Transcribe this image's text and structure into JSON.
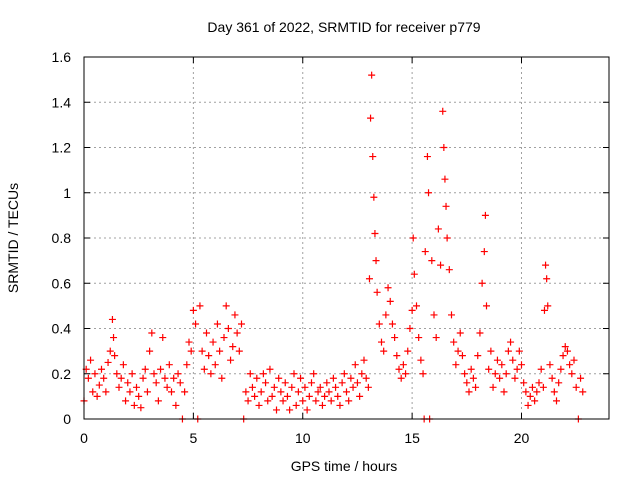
{
  "chart_data": {
    "type": "scatter",
    "title": "Day 361 of 2022, SRMTID for receiver p779",
    "xlabel": "GPS time / hours",
    "ylabel": "SRMTID / TECUs",
    "xlim": [
      0,
      24
    ],
    "ylim": [
      0,
      1.6
    ],
    "grid": true,
    "marker": "+",
    "series_color": "#ff0000",
    "x_ticks": [
      {
        "value": 0,
        "label": "0"
      },
      {
        "value": 5,
        "label": "5"
      },
      {
        "value": 10,
        "label": "10"
      },
      {
        "value": 15,
        "label": "15"
      },
      {
        "value": 20,
        "label": "20"
      }
    ],
    "y_ticks": [
      {
        "value": 0,
        "label": "0"
      },
      {
        "value": 0.2,
        "label": "0.2"
      },
      {
        "value": 0.4,
        "label": "0.4"
      },
      {
        "value": 0.6,
        "label": "0.6"
      },
      {
        "value": 0.8,
        "label": "0.8"
      },
      {
        "value": 1.0,
        "label": "1"
      },
      {
        "value": 1.2,
        "label": "1.2"
      },
      {
        "value": 1.4,
        "label": "1.4"
      },
      {
        "value": 1.6,
        "label": "1.6"
      }
    ],
    "series": [
      {
        "name": "SRMTID",
        "points": [
          [
            0.0,
            0.08
          ],
          [
            0.1,
            0.22
          ],
          [
            0.2,
            0.18
          ],
          [
            0.3,
            0.26
          ],
          [
            0.4,
            0.12
          ],
          [
            0.5,
            0.2
          ],
          [
            0.6,
            0.1
          ],
          [
            0.7,
            0.15
          ],
          [
            0.8,
            0.22
          ],
          [
            0.9,
            0.18
          ],
          [
            1.0,
            0.12
          ],
          [
            1.1,
            0.25
          ],
          [
            1.2,
            0.3
          ],
          [
            1.3,
            0.44
          ],
          [
            1.35,
            0.36
          ],
          [
            1.4,
            0.28
          ],
          [
            1.5,
            0.2
          ],
          [
            1.6,
            0.14
          ],
          [
            1.7,
            0.18
          ],
          [
            1.8,
            0.24
          ],
          [
            1.9,
            0.08
          ],
          [
            2.0,
            0.16
          ],
          [
            2.1,
            0.12
          ],
          [
            2.2,
            0.2
          ],
          [
            2.3,
            0.06
          ],
          [
            2.4,
            0.14
          ],
          [
            2.5,
            0.1
          ],
          [
            2.6,
            0.05
          ],
          [
            2.7,
            0.18
          ],
          [
            2.8,
            0.22
          ],
          [
            2.9,
            0.12
          ],
          [
            3.0,
            0.3
          ],
          [
            3.1,
            0.38
          ],
          [
            3.2,
            0.2
          ],
          [
            3.3,
            0.16
          ],
          [
            3.4,
            0.08
          ],
          [
            3.5,
            0.22
          ],
          [
            3.6,
            0.36
          ],
          [
            3.7,
            0.18
          ],
          [
            3.8,
            0.14
          ],
          [
            3.9,
            0.24
          ],
          [
            4.0,
            0.12
          ],
          [
            4.1,
            0.18
          ],
          [
            4.2,
            0.06
          ],
          [
            4.3,
            0.2
          ],
          [
            4.4,
            0.16
          ],
          [
            4.5,
            0.0
          ],
          [
            4.6,
            0.12
          ],
          [
            4.7,
            0.24
          ],
          [
            4.8,
            0.34
          ],
          [
            4.9,
            0.3
          ],
          [
            5.0,
            0.48
          ],
          [
            5.1,
            0.42
          ],
          [
            5.2,
            0.0
          ],
          [
            5.3,
            0.5
          ],
          [
            5.4,
            0.3
          ],
          [
            5.5,
            0.22
          ],
          [
            5.6,
            0.38
          ],
          [
            5.7,
            0.28
          ],
          [
            5.8,
            0.2
          ],
          [
            5.9,
            0.34
          ],
          [
            6.0,
            0.24
          ],
          [
            6.1,
            0.42
          ],
          [
            6.2,
            0.3
          ],
          [
            6.3,
            0.18
          ],
          [
            6.4,
            0.36
          ],
          [
            6.5,
            0.5
          ],
          [
            6.6,
            0.4
          ],
          [
            6.7,
            0.26
          ],
          [
            6.8,
            0.32
          ],
          [
            6.9,
            0.46
          ],
          [
            7.0,
            0.38
          ],
          [
            7.1,
            0.3
          ],
          [
            7.2,
            0.42
          ],
          [
            7.3,
            0.0
          ],
          [
            7.4,
            0.12
          ],
          [
            7.5,
            0.08
          ],
          [
            7.6,
            0.2
          ],
          [
            7.7,
            0.14
          ],
          [
            7.8,
            0.1
          ],
          [
            7.9,
            0.18
          ],
          [
            8.0,
            0.06
          ],
          [
            8.1,
            0.12
          ],
          [
            8.2,
            0.2
          ],
          [
            8.3,
            0.16
          ],
          [
            8.4,
            0.08
          ],
          [
            8.5,
            0.22
          ],
          [
            8.6,
            0.1
          ],
          [
            8.7,
            0.14
          ],
          [
            8.8,
            0.04
          ],
          [
            8.9,
            0.18
          ],
          [
            9.0,
            0.12
          ],
          [
            9.1,
            0.08
          ],
          [
            9.2,
            0.16
          ],
          [
            9.3,
            0.1
          ],
          [
            9.4,
            0.04
          ],
          [
            9.5,
            0.14
          ],
          [
            9.6,
            0.2
          ],
          [
            9.7,
            0.06
          ],
          [
            9.8,
            0.12
          ],
          [
            9.9,
            0.18
          ],
          [
            10.0,
            0.08
          ],
          [
            10.1,
            0.14
          ],
          [
            10.2,
            0.04
          ],
          [
            10.3,
            0.1
          ],
          [
            10.4,
            0.16
          ],
          [
            10.5,
            0.2
          ],
          [
            10.6,
            0.08
          ],
          [
            10.7,
            0.12
          ],
          [
            10.8,
            0.14
          ],
          [
            10.9,
            0.06
          ],
          [
            11.0,
            0.1
          ],
          [
            11.1,
            0.16
          ],
          [
            11.2,
            0.12
          ],
          [
            11.3,
            0.08
          ],
          [
            11.4,
            0.18
          ],
          [
            11.5,
            0.14
          ],
          [
            11.6,
            0.1
          ],
          [
            11.7,
            0.06
          ],
          [
            11.8,
            0.16
          ],
          [
            11.9,
            0.2
          ],
          [
            12.0,
            0.12
          ],
          [
            12.1,
            0.08
          ],
          [
            12.2,
            0.18
          ],
          [
            12.3,
            0.14
          ],
          [
            12.4,
            0.24
          ],
          [
            12.5,
            0.16
          ],
          [
            12.6,
            0.1
          ],
          [
            12.7,
            0.2
          ],
          [
            12.8,
            0.26
          ],
          [
            12.9,
            0.18
          ],
          [
            13.0,
            0.14
          ],
          [
            13.05,
            0.62
          ],
          [
            13.1,
            1.33
          ],
          [
            13.15,
            1.52
          ],
          [
            13.2,
            1.16
          ],
          [
            13.25,
            0.98
          ],
          [
            13.3,
            0.82
          ],
          [
            13.35,
            0.7
          ],
          [
            13.4,
            0.56
          ],
          [
            13.5,
            0.42
          ],
          [
            13.6,
            0.34
          ],
          [
            13.7,
            0.3
          ],
          [
            13.8,
            0.46
          ],
          [
            13.9,
            0.58
          ],
          [
            14.0,
            0.52
          ],
          [
            14.1,
            0.42
          ],
          [
            14.2,
            0.36
          ],
          [
            14.3,
            0.28
          ],
          [
            14.4,
            0.22
          ],
          [
            14.5,
            0.18
          ],
          [
            14.6,
            0.24
          ],
          [
            14.7,
            0.2
          ],
          [
            14.8,
            0.3
          ],
          [
            14.9,
            0.4
          ],
          [
            15.0,
            0.48
          ],
          [
            15.05,
            0.8
          ],
          [
            15.1,
            0.64
          ],
          [
            15.2,
            0.5
          ],
          [
            15.3,
            0.36
          ],
          [
            15.4,
            0.26
          ],
          [
            15.5,
            0.2
          ],
          [
            15.55,
            0.0
          ],
          [
            15.6,
            0.74
          ],
          [
            15.7,
            1.16
          ],
          [
            15.75,
            1.0
          ],
          [
            15.8,
            0.0
          ],
          [
            15.9,
            0.7
          ],
          [
            16.0,
            0.46
          ],
          [
            16.1,
            0.36
          ],
          [
            16.2,
            0.84
          ],
          [
            16.3,
            0.68
          ],
          [
            16.4,
            1.36
          ],
          [
            16.45,
            1.2
          ],
          [
            16.5,
            1.06
          ],
          [
            16.55,
            0.94
          ],
          [
            16.6,
            0.8
          ],
          [
            16.7,
            0.66
          ],
          [
            16.8,
            0.46
          ],
          [
            16.9,
            0.34
          ],
          [
            17.0,
            0.24
          ],
          [
            17.1,
            0.3
          ],
          [
            17.2,
            0.38
          ],
          [
            17.3,
            0.28
          ],
          [
            17.4,
            0.2
          ],
          [
            17.5,
            0.16
          ],
          [
            17.6,
            0.12
          ],
          [
            17.7,
            0.22
          ],
          [
            17.8,
            0.18
          ],
          [
            17.9,
            0.14
          ],
          [
            18.0,
            0.28
          ],
          [
            18.1,
            0.38
          ],
          [
            18.2,
            0.6
          ],
          [
            18.3,
            0.74
          ],
          [
            18.35,
            0.9
          ],
          [
            18.4,
            0.5
          ],
          [
            18.5,
            0.22
          ],
          [
            18.6,
            0.3
          ],
          [
            18.7,
            0.14
          ],
          [
            18.8,
            0.2
          ],
          [
            18.9,
            0.26
          ],
          [
            19.0,
            0.18
          ],
          [
            19.1,
            0.24
          ],
          [
            19.2,
            0.12
          ],
          [
            19.3,
            0.2
          ],
          [
            19.4,
            0.3
          ],
          [
            19.5,
            0.34
          ],
          [
            19.6,
            0.26
          ],
          [
            19.7,
            0.18
          ],
          [
            19.8,
            0.22
          ],
          [
            19.9,
            0.3
          ],
          [
            20.0,
            0.24
          ],
          [
            20.1,
            0.16
          ],
          [
            20.2,
            0.12
          ],
          [
            20.3,
            0.06
          ],
          [
            20.4,
            0.1
          ],
          [
            20.5,
            0.14
          ],
          [
            20.6,
            0.08
          ],
          [
            20.7,
            0.12
          ],
          [
            20.8,
            0.16
          ],
          [
            20.9,
            0.22
          ],
          [
            21.0,
            0.14
          ],
          [
            21.05,
            0.48
          ],
          [
            21.1,
            0.68
          ],
          [
            21.15,
            0.62
          ],
          [
            21.2,
            0.5
          ],
          [
            21.3,
            0.24
          ],
          [
            21.4,
            0.18
          ],
          [
            21.5,
            0.12
          ],
          [
            21.6,
            0.08
          ],
          [
            21.7,
            0.16
          ],
          [
            21.8,
            0.22
          ],
          [
            21.9,
            0.28
          ],
          [
            22.0,
            0.32
          ],
          [
            22.1,
            0.3
          ],
          [
            22.2,
            0.24
          ],
          [
            22.3,
            0.2
          ],
          [
            22.4,
            0.26
          ],
          [
            22.5,
            0.14
          ],
          [
            22.6,
            0.0
          ],
          [
            22.7,
            0.18
          ],
          [
            22.8,
            0.12
          ]
        ]
      }
    ]
  }
}
